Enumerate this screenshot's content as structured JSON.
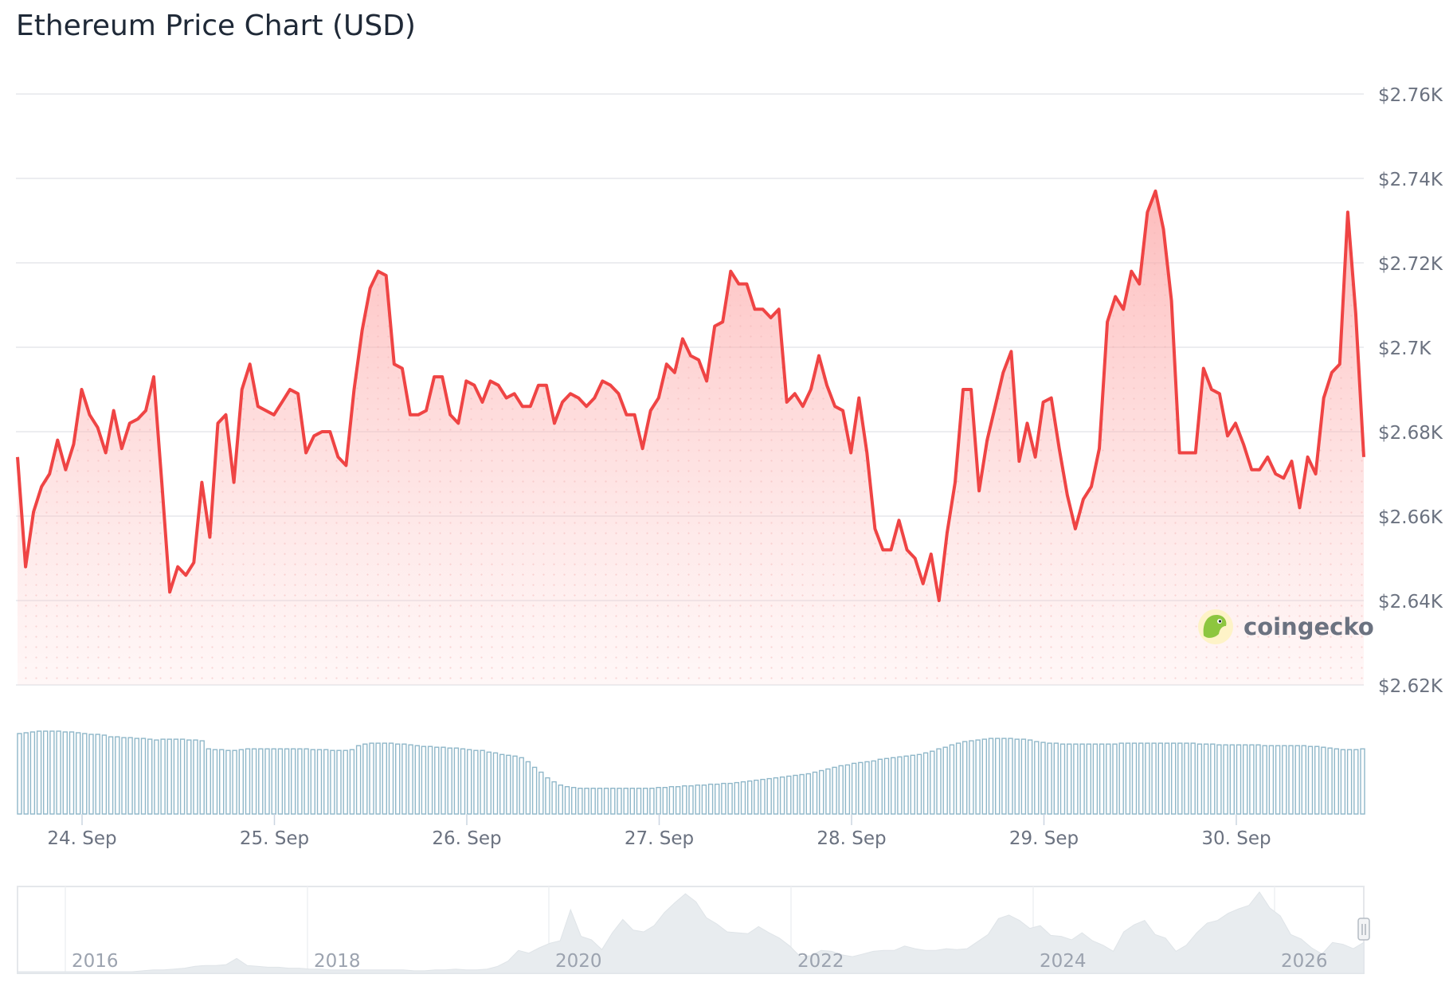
{
  "title": "Ethereum Price Chart (USD)",
  "brand": {
    "name": "coingecko",
    "logo_icon": "gecko-logo-icon"
  },
  "colors": {
    "line": "#ef4444",
    "area_top": "#fca5a5",
    "grid": "#e5e7eb",
    "volume": "#8fb7c9",
    "axis_text": "#6b7280",
    "navigator_fill": "#e8ecef"
  },
  "chart_data": [
    {
      "type": "area",
      "title": "Ethereum Price Chart (USD)",
      "xlabel": "",
      "ylabel": "",
      "ylim": [
        2620,
        2760
      ],
      "y_ticks": [
        2620,
        2640,
        2660,
        2680,
        2700,
        2720,
        2740,
        2760
      ],
      "y_tick_labels": [
        "$2.62K",
        "$2.64K",
        "$2.66K",
        "$2.68K",
        "$2.7K",
        "$2.72K",
        "$2.74K",
        "$2.76K"
      ],
      "x_range_days": [
        "23. Sep 16:00",
        "30. Sep 16:00"
      ],
      "x_tick_labels": [
        "24. Sep",
        "25. Sep",
        "26. Sep",
        "27. Sep",
        "28. Sep",
        "29. Sep",
        "30. Sep"
      ],
      "grid": true,
      "series": [
        {
          "values": [
            2674,
            2648,
            2661,
            2667,
            2670,
            2678,
            2671,
            2677,
            2690,
            2684,
            2681,
            2675,
            2685,
            2676,
            2682,
            2683,
            2685,
            2693,
            2668,
            2642,
            2648,
            2646,
            2649,
            2668,
            2655,
            2682,
            2684,
            2668,
            2690,
            2696,
            2686,
            2685,
            2684,
            2687,
            2690,
            2689,
            2675,
            2679,
            2680,
            2680,
            2674,
            2672,
            2690,
            2704,
            2714,
            2718,
            2717,
            2696,
            2695,
            2684,
            2684,
            2685,
            2693,
            2693,
            2684,
            2682,
            2692,
            2691,
            2687,
            2692,
            2691,
            2688,
            2689,
            2686,
            2686,
            2691,
            2691,
            2682,
            2687,
            2689,
            2688,
            2686,
            2688,
            2692,
            2691,
            2689,
            2684,
            2684,
            2676,
            2685,
            2688,
            2696,
            2694,
            2702,
            2698,
            2697,
            2692,
            2705,
            2706,
            2718,
            2715,
            2715,
            2709,
            2709,
            2707,
            2709,
            2687,
            2689,
            2686,
            2690,
            2698,
            2691,
            2686,
            2685,
            2675,
            2688,
            2675,
            2657,
            2652,
            2652,
            2659,
            2652,
            2650,
            2644,
            2651,
            2640,
            2656,
            2668,
            2690,
            2690,
            2666,
            2678,
            2686,
            2694,
            2699,
            2673,
            2682,
            2674,
            2687,
            2688,
            2676,
            2665,
            2657,
            2664,
            2667,
            2676,
            2706,
            2712,
            2709,
            2718,
            2715,
            2732,
            2737,
            2728,
            2711,
            2675,
            2675,
            2675,
            2695,
            2690,
            2689,
            2679,
            2682,
            2677,
            2671,
            2671,
            2674,
            2670,
            2669,
            2673,
            2662,
            2674,
            2670,
            2688,
            2694,
            2696,
            2732,
            2708,
            2674
          ]
        }
      ]
    },
    {
      "type": "bar",
      "title": "",
      "note": "trading volume bars (no scale printed)",
      "values": [
        100,
        101,
        102,
        103,
        103,
        103,
        103,
        102,
        102,
        101,
        100,
        99,
        99,
        98,
        96,
        96,
        95,
        95,
        94,
        94,
        93,
        92,
        93,
        93,
        93,
        93,
        92,
        92,
        91,
        81,
        80,
        80,
        79,
        79,
        80,
        81,
        81,
        81,
        81,
        81,
        81,
        81,
        81,
        81,
        81,
        80,
        80,
        80,
        79,
        79,
        79,
        80,
        85,
        87,
        88,
        88,
        88,
        88,
        87,
        87,
        86,
        85,
        84,
        84,
        83,
        83,
        82,
        82,
        81,
        80,
        79,
        79,
        77,
        76,
        74,
        73,
        72,
        70,
        65,
        58,
        52,
        45,
        40,
        36,
        34,
        33,
        32,
        32,
        32,
        32,
        32,
        32,
        32,
        32,
        32,
        32,
        32,
        32,
        33,
        33,
        34,
        34,
        35,
        35,
        36,
        36,
        37,
        37,
        38,
        38,
        39,
        40,
        41,
        42,
        43,
        44,
        45,
        46,
        47,
        48,
        49,
        50,
        52,
        54,
        56,
        58,
        60,
        61,
        63,
        64,
        65,
        66,
        68,
        69,
        70,
        71,
        72,
        73,
        74,
        76,
        78,
        81,
        83,
        86,
        88,
        90,
        91,
        92,
        93,
        94,
        94,
        94,
        94,
        93,
        93,
        92,
        90,
        89,
        88,
        88,
        87,
        87,
        87,
        87,
        87,
        87,
        87,
        87,
        87,
        88,
        88,
        88,
        88,
        88,
        88,
        88,
        88,
        88,
        88,
        88,
        88,
        87,
        87,
        87,
        86,
        86,
        86,
        86,
        86,
        86,
        86,
        85,
        85,
        85,
        85,
        85,
        85,
        85,
        84,
        84,
        83,
        82,
        81,
        80,
        80,
        80,
        81
      ]
    },
    {
      "type": "area",
      "title": "",
      "note": "range navigator (full history)",
      "x_tick_labels": [
        "2016",
        "2018",
        "2020",
        "2022",
        "2024",
        "2026"
      ],
      "values": [
        0,
        0,
        0,
        0,
        0,
        0,
        0,
        0,
        0,
        0,
        0,
        0,
        1,
        2,
        2,
        3,
        4,
        6,
        7,
        7,
        8,
        15,
        7,
        6,
        5,
        5,
        4,
        4,
        3,
        3,
        2,
        2,
        2,
        2,
        2,
        2,
        2,
        2,
        1,
        1,
        2,
        2,
        3,
        2,
        2,
        3,
        6,
        12,
        24,
        21,
        27,
        32,
        35,
        70,
        40,
        36,
        25,
        44,
        59,
        47,
        45,
        52,
        67,
        78,
        88,
        79,
        61,
        54,
        45,
        44,
        43,
        51,
        44,
        38,
        29,
        17,
        18,
        24,
        23,
        19,
        17,
        20,
        23,
        24,
        24,
        29,
        26,
        24,
        24,
        26,
        25,
        26,
        34,
        42,
        60,
        64,
        58,
        49,
        52,
        41,
        40,
        36,
        44,
        35,
        30,
        23,
        45,
        53,
        58,
        42,
        38,
        23,
        30,
        44,
        55,
        58,
        66,
        71,
        75,
        90,
        72,
        63,
        42,
        37,
        27,
        20,
        33,
        31,
        26,
        33
      ]
    }
  ]
}
